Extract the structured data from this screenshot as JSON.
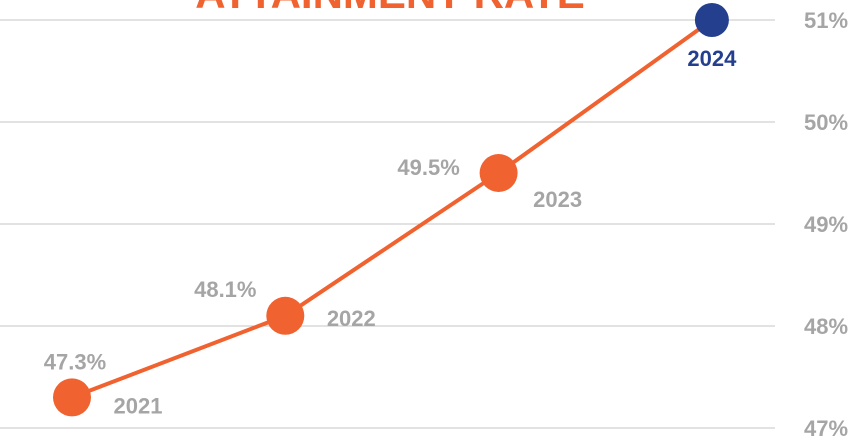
{
  "chart_data": {
    "type": "line",
    "title": "ATTAINMENT RATE",
    "categories": [
      "2021",
      "2022",
      "2023",
      "2024"
    ],
    "series": [
      {
        "name": "Attainment rate",
        "color": "#f0622f",
        "values": [
          47.3,
          48.1,
          49.5,
          51
        ],
        "value_labels": [
          "47.3%",
          "48.1%",
          "49.5%",
          null
        ]
      }
    ],
    "highlight_color": "#253f8f",
    "ylim": [
      47,
      51
    ],
    "yticks": [
      {
        "value": 47,
        "label": "47%"
      },
      {
        "value": 48,
        "label": "48%"
      },
      {
        "value": 49,
        "label": "49%"
      },
      {
        "value": 50,
        "label": "50%"
      },
      {
        "value": 51,
        "label": "51%"
      }
    ],
    "grid": true
  }
}
